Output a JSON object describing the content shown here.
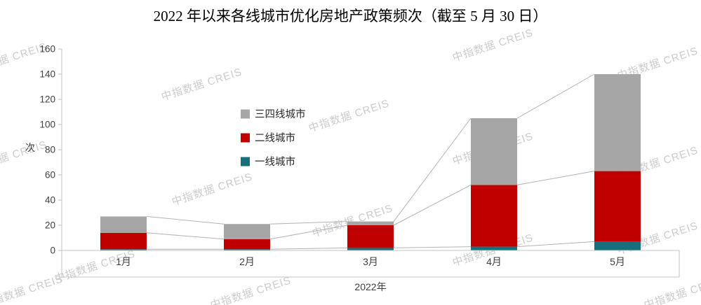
{
  "title": "2022 年以来各线城市优化房地产政策频次（截至 5 月 30 日）",
  "watermark_text": "中指数据 CREIS",
  "chart_data": {
    "type": "bar",
    "stacked": true,
    "title": "2022 年以来各线城市优化房地产政策频次（截至 5 月 30 日）",
    "categories": [
      "1月",
      "2月",
      "3月",
      "4月",
      "5月"
    ],
    "series": [
      {
        "name": "一线城市",
        "color": "#15707a",
        "values": [
          1,
          1,
          2,
          3,
          7
        ]
      },
      {
        "name": "二线城市",
        "color": "#c00000",
        "values": [
          13,
          8,
          18,
          49,
          56
        ]
      },
      {
        "name": "三四线城市",
        "color": "#a6a6a6",
        "values": [
          13,
          12,
          3,
          53,
          77
        ]
      }
    ],
    "totals": [
      27,
      21,
      23,
      105,
      140
    ],
    "legend_order": [
      "三四线城市",
      "二线城市",
      "一线城市"
    ],
    "legend_position": "middle-left-vertical",
    "ylabel": "次",
    "xlabel": "2022年",
    "ylim": [
      0,
      160
    ],
    "ytick_step": 20,
    "grid": false,
    "series_lines": true
  }
}
